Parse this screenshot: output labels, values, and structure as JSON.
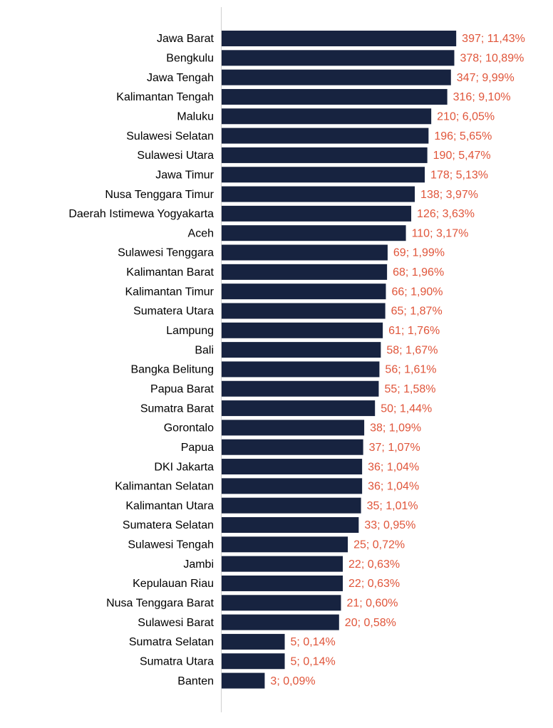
{
  "chart_data": {
    "type": "barh",
    "categories": [
      "Jawa Barat",
      "Bengkulu",
      "Jawa Tengah",
      "Kalimantan Tengah",
      "Maluku",
      "Sulawesi Selatan",
      "Sulawesi Utara",
      "Jawa Timur",
      "Nusa Tenggara Timur",
      "Daerah Istimewa Yogyakarta",
      "Aceh",
      "Sulawesi Tenggara",
      "Kalimantan Barat",
      "Kalimantan Timur",
      "Sumatera Utara",
      "Lampung",
      "Bali",
      "Bangka Belitung",
      "Papua Barat",
      "Sumatra Barat",
      "Gorontalo",
      "Papua",
      "DKI Jakarta",
      "Kalimantan Selatan",
      "Kalimantan Utara",
      "Sumatera Selatan",
      "Sulawesi Tengah",
      "Jambi",
      "Kepulauan Riau",
      "Nusa Tenggara Barat",
      "Sulawesi Barat",
      "Sumatra Selatan",
      "Sumatra Utara",
      "Banten"
    ],
    "values": [
      397,
      378,
      347,
      316,
      210,
      196,
      190,
      178,
      138,
      126,
      110,
      69,
      68,
      66,
      65,
      61,
      58,
      56,
      55,
      50,
      38,
      37,
      36,
      36,
      35,
      33,
      25,
      22,
      22,
      21,
      20,
      5,
      5,
      3
    ],
    "value_labels": [
      "397; 11,43%",
      "378; 10,89%",
      "347; 9,99%",
      "316; 9,10%",
      "210; 6,05%",
      "196; 5,65%",
      "190; 5,47%",
      "178; 5,13%",
      "138; 3,97%",
      "126; 3,63%",
      "110; 3,17%",
      "69; 1,99%",
      "68; 1,96%",
      "66; 1,90%",
      "65; 1,87%",
      "61; 1,76%",
      "58; 1,67%",
      "56; 1,61%",
      "55; 1,58%",
      "50; 1,44%",
      "38; 1,09%",
      "37; 1,07%",
      "36; 1,04%",
      "36; 1,04%",
      "35; 1,01%",
      "33; 0,95%",
      "25; 0,72%",
      "22; 0,63%",
      "22; 0,63%",
      "21; 0,60%",
      "20; 0,58%",
      "5; 0,14%",
      "5; 0,14%",
      "3; 0,09%"
    ],
    "color": "#172340",
    "label_color": "#e0553a",
    "xlim": [
      1,
      1000
    ],
    "log_scale": true
  }
}
